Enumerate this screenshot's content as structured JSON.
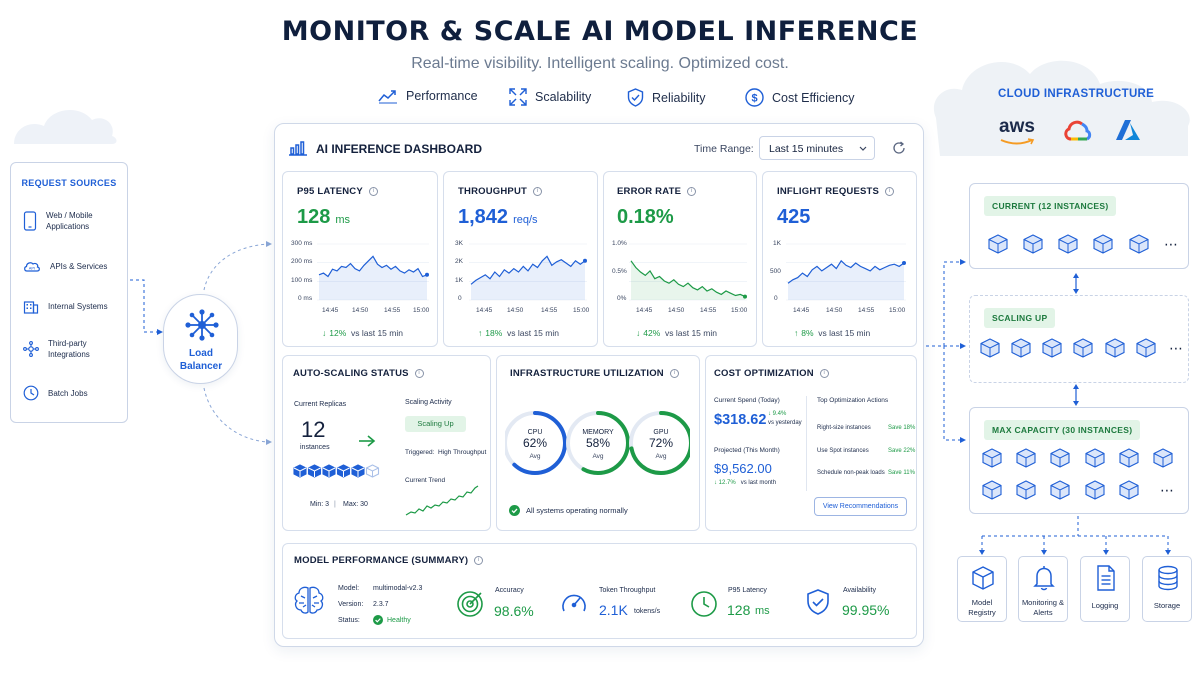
{
  "header": {
    "title": "MONITOR & SCALE AI MODEL INFERENCE",
    "subtitle": "Real-time visibility. Intelligent scaling. Optimized cost.",
    "pillars": [
      {
        "label": "Performance",
        "icon": "trend-line-icon"
      },
      {
        "label": "Scalability",
        "icon": "expand-arrows-icon"
      },
      {
        "label": "Reliability",
        "icon": "shield-check-icon"
      },
      {
        "label": "Cost Efficiency",
        "icon": "dollar-circle-icon"
      }
    ]
  },
  "request_sources": {
    "title": "REQUEST SOURCES",
    "items": [
      {
        "label": "Web / Mobile Applications",
        "icon": "mobile-phone-icon"
      },
      {
        "label": "APIs & Services",
        "icon": "api-cloud-icon"
      },
      {
        "label": "Internal Systems",
        "icon": "building-icon"
      },
      {
        "label": "Third-party Integrations",
        "icon": "integration-icon"
      },
      {
        "label": "Batch Jobs",
        "icon": "clock-icon"
      }
    ]
  },
  "load_balancer": {
    "label": "Load Balancer"
  },
  "dashboard": {
    "title": "AI INFERENCE DASHBOARD",
    "time_range_label": "Time Range:",
    "time_range_value": "Last 15 minutes",
    "metrics": [
      {
        "title": "P95 LATENCY",
        "value": "128",
        "unit": "ms",
        "delta": "12%",
        "delta_dir": "down",
        "delta_text": "vs last 15 min",
        "y_ticks": [
          "300 ms",
          "200 ms",
          "100 ms",
          "0 ms"
        ],
        "x_ticks": [
          "14:45",
          "14:50",
          "14:55",
          "15:00"
        ],
        "color": "#1f5fd6"
      },
      {
        "title": "THROUGHPUT",
        "value": "1,842",
        "unit": "req/s",
        "delta": "18%",
        "delta_dir": "up",
        "delta_text": "vs last 15 min",
        "y_ticks": [
          "3K",
          "2K",
          "1K",
          "0"
        ],
        "x_ticks": [
          "14:45",
          "14:50",
          "14:55",
          "15:00"
        ],
        "color": "#1f5fd6"
      },
      {
        "title": "ERROR RATE",
        "value": "0.18%",
        "unit": "",
        "delta": "42%",
        "delta_dir": "down",
        "delta_text": "vs last 15 min",
        "y_ticks": [
          "1.0%",
          "0.5%",
          "0%"
        ],
        "x_ticks": [
          "14:45",
          "14:50",
          "14:55",
          "15:00"
        ],
        "color": "#1d9a47"
      },
      {
        "title": "INFLIGHT REQUESTS",
        "value": "425",
        "unit": "",
        "delta": "8%",
        "delta_dir": "up",
        "delta_text": "vs last 15 min",
        "y_ticks": [
          "1K",
          "500",
          "0"
        ],
        "x_ticks": [
          "14:45",
          "14:50",
          "14:55",
          "15:00"
        ],
        "color": "#1f5fd6"
      }
    ],
    "autoscaling": {
      "title": "AUTO-SCALING STATUS",
      "replicas_label": "Current Replicas",
      "replicas_value": "12",
      "replicas_unit": "instances",
      "activity_label": "Scaling Activity",
      "activity_value": "Scaling Up",
      "triggered_label": "Triggered:",
      "triggered_value": "High Throughput",
      "trend_label": "Current Trend",
      "min": "Min: 3",
      "max": "Max: 30",
      "active_cubes": 5,
      "total_cubes": 6
    },
    "infrastructure": {
      "title": "INFRASTRUCTURE UTILIZATION",
      "gauges": [
        {
          "name": "CPU",
          "value": "62%",
          "sub": "Avg",
          "fraction": 0.62,
          "color": "#1f5fd6"
        },
        {
          "name": "MEMORY",
          "value": "58%",
          "sub": "Avg",
          "fraction": 0.58,
          "color": "#1d9a47"
        },
        {
          "name": "GPU",
          "value": "72%",
          "sub": "Avg",
          "fraction": 0.72,
          "color": "#1d9a47"
        }
      ],
      "status": "All systems operating normally"
    },
    "cost": {
      "title": "COST OPTIMIZATION",
      "spend_label": "Current Spend (Today)",
      "spend_value": "$318.62",
      "spend_delta": "9.4%",
      "spend_delta_text": "vs yesterday",
      "projected_label": "Projected (This Month)",
      "projected_value": "$9,562.00",
      "projected_delta": "12.7%",
      "projected_delta_text": "vs last month",
      "actions_title": "Top Optimization Actions",
      "actions": [
        {
          "label": "Right-size instances",
          "save": "Save 18%"
        },
        {
          "label": "Use Spot instances",
          "save": "Save 22%"
        },
        {
          "label": "Schedule non-peak loads",
          "save": "Save 11%"
        }
      ],
      "button": "View Recommendations"
    },
    "model": {
      "title": "MODEL PERFORMANCE (SUMMARY)",
      "model_label": "Model:",
      "model_value": "multimodal-v2.3",
      "version_label": "Version:",
      "version_value": "2.3.7",
      "status_label": "Status:",
      "status_value": "Healthy",
      "stats": [
        {
          "label": "Accuracy",
          "value": "98.6%",
          "unit": "",
          "icon": "target-icon"
        },
        {
          "label": "Token Throughput",
          "value": "2.1K",
          "unit": "tokens/s",
          "icon": "speedometer-icon"
        },
        {
          "label": "P95 Latency",
          "value": "128",
          "unit": "ms",
          "icon": "stopwatch-icon"
        },
        {
          "label": "Availability",
          "value": "99.95%",
          "unit": "",
          "icon": "shield-check-icon"
        }
      ]
    }
  },
  "cloud": {
    "title": "CLOUD INFRASTRUCTURE",
    "providers": [
      "aws",
      "google-cloud",
      "azure"
    ],
    "aws_text": "aws",
    "clusters": [
      {
        "label": "CURRENT (12 INSTANCES)",
        "rows": [
          5
        ],
        "more": "⋯"
      },
      {
        "label": "SCALING UP",
        "rows": [
          6
        ],
        "more": "⋯"
      },
      {
        "label": "MAX CAPACITY (30 INSTANCES)",
        "rows": [
          6,
          5
        ],
        "more": "⋯"
      }
    ],
    "services": [
      {
        "label": "Model Registry",
        "icon": "cube-icon"
      },
      {
        "label": "Monitoring & Alerts",
        "icon": "bell-icon"
      },
      {
        "label": "Logging",
        "icon": "document-icon"
      },
      {
        "label": "Storage",
        "icon": "database-icon"
      }
    ]
  },
  "colors": {
    "accent": "#1f5fd6",
    "success": "#1d9a47",
    "navy": "#14213d"
  }
}
